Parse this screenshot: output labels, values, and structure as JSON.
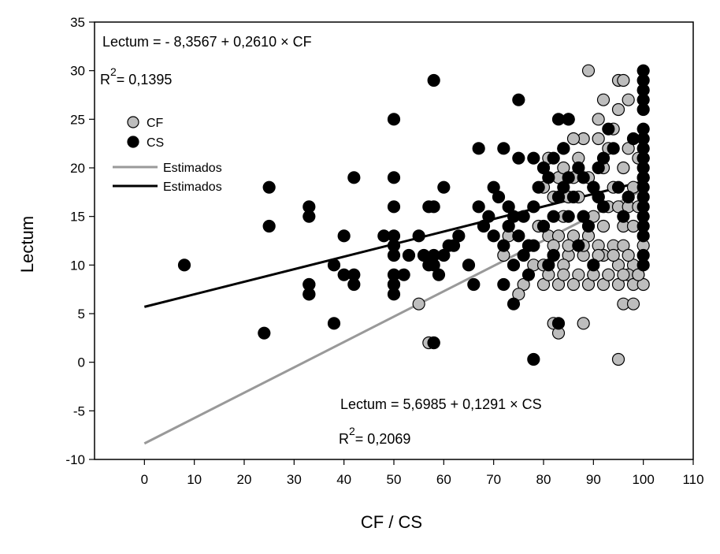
{
  "chart_data": {
    "type": "scatter",
    "xlabel": "CF / CS",
    "ylabel": "Lectum",
    "xlim": [
      -10,
      110
    ],
    "ylim": [
      -10,
      35
    ],
    "xticks": [
      0,
      10,
      20,
      30,
      40,
      50,
      60,
      70,
      80,
      90,
      100,
      110
    ],
    "yticks": [
      -10,
      -5,
      0,
      5,
      10,
      15,
      20,
      25,
      30,
      35
    ],
    "grid": false,
    "legend": {
      "placement": "top-left",
      "entries": [
        {
          "label": "CF",
          "kind": "marker",
          "color": "#bdbdbd"
        },
        {
          "label": "CS",
          "kind": "marker",
          "color": "#000000"
        },
        {
          "label": "Estimados",
          "kind": "line",
          "color": "#999999"
        },
        {
          "label": "Estimados",
          "kind": "line",
          "color": "#000000"
        }
      ]
    },
    "annotations": {
      "cf_equation": "Lectum = - 8,3567 + 0,2610 × CF",
      "cf_r2_prefix": "R",
      "cf_r2_sup": "2",
      "cf_r2_value": "= 0,1395",
      "cs_equation": "Lectum = 5,6985 + 0,1291 × CS",
      "cs_r2_prefix": "R",
      "cs_r2_sup": "2",
      "cs_r2_value": "= 0,2069"
    },
    "series": [
      {
        "name": "CF",
        "color": "#bdbdbd",
        "x": [
          89,
          95,
          96,
          92,
          97,
          95,
          85,
          91,
          94,
          88,
          86,
          84,
          81,
          87,
          93,
          97,
          99,
          96,
          92,
          89,
          86,
          83,
          90,
          94,
          98,
          80,
          82,
          85,
          87,
          91,
          93,
          95,
          97,
          99,
          84,
          88,
          90,
          92,
          96,
          98,
          79,
          81,
          83,
          86,
          89,
          91,
          94,
          96,
          100,
          82,
          85,
          88,
          92,
          95,
          98,
          78,
          80,
          84,
          87,
          90,
          93,
          97,
          99,
          76,
          80,
          83,
          86,
          89,
          92,
          95,
          98,
          100,
          73,
          77,
          82,
          85,
          88,
          91,
          94,
          97,
          72,
          81,
          84,
          90,
          93,
          96,
          99,
          82,
          88,
          96,
          98,
          83,
          95,
          75,
          55,
          57,
          58,
          84,
          91
        ],
        "y": [
          30,
          29,
          29,
          27,
          27,
          26,
          25,
          25,
          24,
          23,
          23,
          22,
          21,
          21,
          22,
          22,
          21,
          20,
          20,
          19,
          19,
          19,
          18,
          18,
          18,
          18,
          17,
          17,
          17,
          17,
          16,
          16,
          16,
          16,
          15,
          15,
          15,
          14,
          14,
          14,
          14,
          13,
          13,
          13,
          13,
          12,
          12,
          12,
          12,
          11,
          11,
          11,
          11,
          10,
          10,
          10,
          10,
          10,
          9,
          9,
          9,
          9,
          9,
          8,
          8,
          8,
          8,
          8,
          8,
          8,
          8,
          8,
          13,
          12,
          12,
          12,
          12,
          11,
          11,
          11,
          11,
          9,
          9,
          9,
          9,
          9,
          9,
          4,
          4,
          6,
          6,
          3,
          0.3,
          7,
          6,
          2,
          2,
          20,
          23
        ]
      },
      {
        "name": "CS",
        "color": "#000000",
        "x": [
          8,
          24,
          25,
          25,
          33,
          33,
          33,
          33,
          33,
          33,
          38,
          38,
          40,
          40,
          42,
          42,
          42,
          48,
          50,
          50,
          50,
          50,
          50,
          50,
          50,
          50,
          50,
          50,
          52,
          53,
          55,
          56,
          57,
          57,
          58,
          58,
          58,
          58,
          58,
          59,
          60,
          60,
          61,
          62,
          63,
          65,
          66,
          67,
          67,
          68,
          69,
          70,
          70,
          71,
          72,
          72,
          73,
          73,
          74,
          74,
          75,
          75,
          75,
          76,
          76,
          77,
          77,
          78,
          78,
          78,
          79,
          80,
          80,
          81,
          81,
          82,
          82,
          82,
          83,
          83,
          84,
          84,
          85,
          85,
          85,
          86,
          87,
          87,
          88,
          88,
          89,
          90,
          90,
          91,
          91,
          92,
          92,
          93,
          94,
          95,
          96,
          97,
          98,
          100,
          100,
          100,
          100,
          100,
          100,
          100,
          100,
          100,
          100,
          100,
          100,
          100,
          100,
          100,
          100,
          100,
          100,
          100,
          100,
          100,
          78,
          83,
          74,
          72
        ],
        "y": [
          10,
          3,
          18,
          14,
          16,
          15,
          8,
          7,
          7,
          8,
          10,
          4,
          13,
          9,
          19,
          9,
          8,
          13,
          25,
          19,
          16,
          13,
          12,
          11,
          9,
          8,
          7,
          8,
          9,
          11,
          13,
          11,
          16,
          10,
          29,
          16,
          11,
          10,
          2,
          9,
          18,
          11,
          12,
          12,
          13,
          10,
          8,
          22,
          16,
          14,
          15,
          18,
          13,
          17,
          22,
          12,
          14,
          16,
          15,
          10,
          27,
          21,
          13,
          15,
          11,
          12,
          9,
          21,
          16,
          12,
          18,
          20,
          14,
          19,
          10,
          21,
          15,
          11,
          25,
          17,
          22,
          18,
          25,
          19,
          15,
          17,
          20,
          12,
          19,
          15,
          14,
          18,
          10,
          20,
          17,
          21,
          16,
          24,
          22,
          18,
          15,
          17,
          23,
          30,
          29,
          28,
          27,
          26,
          24,
          23,
          22,
          21,
          20,
          19,
          18,
          17,
          16,
          15,
          14,
          13,
          11,
          10,
          21,
          19,
          0.3,
          4,
          6,
          8
        ]
      }
    ],
    "fit_lines": [
      {
        "name": "Estimados",
        "color": "#999999",
        "intercept": -8.3567,
        "slope": 0.261,
        "x_range": [
          0,
          100
        ]
      },
      {
        "name": "Estimados",
        "color": "#000000",
        "intercept": 5.6985,
        "slope": 0.1291,
        "x_range": [
          0,
          100
        ]
      }
    ]
  }
}
